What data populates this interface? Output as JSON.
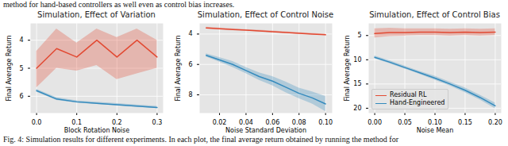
{
  "caption_top": "method for hand-based controllers as well even as control bias increases.",
  "caption_bottom": "Fig. 4: Simulation results for different experiments. In each plot, the final average return obtained by running the method for",
  "chart_data": [
    {
      "type": "line",
      "title": "Simulation, Effect of Variation",
      "x_label": "Block Rotation Noise",
      "y_label": "Final Average Return",
      "x": [
        0,
        0.05,
        0.1,
        0.15,
        0.2,
        0.25,
        0.3
      ],
      "xlim": [
        -0.015,
        0.315
      ],
      "xticks": [
        {
          "value": 0,
          "label": "0.0"
        },
        {
          "value": 0.1,
          "label": "0.1"
        },
        {
          "value": 0.2,
          "label": "0.2"
        },
        {
          "value": 0.3,
          "label": "0.3"
        }
      ],
      "ylim": [
        6.6,
        3.4
      ],
      "yticks": [
        4,
        5,
        6
      ],
      "grid": true,
      "series": [
        {
          "name": "Residual RL",
          "color": "#e24a33",
          "values": [
            5.0,
            4.3,
            4.6,
            4.0,
            4.6,
            4.0,
            4.6
          ],
          "lower": [
            5.7,
            5.0,
            5.1,
            4.9,
            5.4,
            5.2,
            5.0
          ],
          "upper": [
            4.4,
            3.6,
            4.1,
            3.6,
            3.9,
            3.6,
            4.0
          ]
        },
        {
          "name": "Hand-Engineered",
          "color": "#348abd",
          "values": [
            5.8,
            6.1,
            6.2,
            6.25,
            6.3,
            6.35,
            6.4
          ],
          "lower": [
            5.85,
            6.15,
            6.24,
            6.29,
            6.34,
            6.39,
            6.44
          ],
          "upper": [
            5.75,
            6.05,
            6.16,
            6.21,
            6.26,
            6.31,
            6.36
          ]
        }
      ]
    },
    {
      "type": "line",
      "title": "Simulation, Effect of Control Noise",
      "x_label": "Noise Standard Deviation",
      "y_label": "Final Average Return",
      "x": [
        0.01,
        0.02,
        0.03,
        0.04,
        0.05,
        0.06,
        0.07,
        0.08,
        0.09,
        0.1
      ],
      "xlim": [
        0.005,
        0.105
      ],
      "xticks": [
        0.02,
        0.04,
        0.06,
        0.08,
        {
          "value": 0.1,
          "label": "0.10"
        }
      ],
      "ylim": [
        9.2,
        3.3
      ],
      "yticks": [
        4,
        6,
        8
      ],
      "grid": true,
      "series": [
        {
          "name": "Residual RL",
          "color": "#e24a33",
          "values": [
            3.6,
            3.65,
            3.7,
            3.75,
            3.8,
            3.85,
            3.9,
            3.95,
            4.0,
            4.05
          ],
          "lower": [
            3.65,
            3.7,
            3.75,
            3.8,
            3.85,
            3.9,
            3.95,
            4.0,
            4.05,
            4.1
          ],
          "upper": [
            3.55,
            3.6,
            3.65,
            3.7,
            3.75,
            3.8,
            3.85,
            3.9,
            3.95,
            4.0
          ]
        },
        {
          "name": "Hand-Engineered",
          "color": "#348abd",
          "values": [
            5.4,
            5.7,
            6.0,
            6.4,
            6.8,
            7.1,
            7.5,
            7.9,
            8.2,
            8.6
          ],
          "lower": [
            5.5,
            5.85,
            6.2,
            6.6,
            7.05,
            7.4,
            7.85,
            8.25,
            8.6,
            9.1
          ],
          "upper": [
            5.3,
            5.55,
            5.8,
            6.2,
            6.55,
            6.8,
            7.15,
            7.55,
            7.8,
            8.1
          ]
        }
      ]
    },
    {
      "type": "line",
      "title": "Simulation, Effect of Control Bias",
      "x_label": "Noise Mean",
      "y_label": "Final Average Return",
      "x": [
        0,
        0.025,
        0.05,
        0.075,
        0.1,
        0.125,
        0.15,
        0.175,
        0.2
      ],
      "xlim": [
        -0.01,
        0.21
      ],
      "xticks": [
        {
          "value": 0,
          "label": "0.00"
        },
        0.05,
        {
          "value": 0.1,
          "label": "0.10"
        },
        0.15,
        {
          "value": 0.2,
          "label": "0.20"
        }
      ],
      "ylim": [
        21,
        2.5
      ],
      "yticks": [
        5,
        10,
        15,
        20
      ],
      "grid": true,
      "legend": "lower left",
      "series": [
        {
          "name": "Residual RL",
          "color": "#e24a33",
          "values": [
            4.6,
            4.4,
            4.4,
            4.3,
            4.3,
            4.4,
            4.3,
            4.4,
            4.3
          ],
          "lower": [
            5.5,
            5.2,
            5.1,
            5.0,
            5.0,
            5.1,
            5.0,
            5.1,
            5.0
          ],
          "upper": [
            3.6,
            3.5,
            3.6,
            3.6,
            3.6,
            3.7,
            3.6,
            3.7,
            3.6
          ]
        },
        {
          "name": "Hand-Engineered",
          "color": "#348abd",
          "values": [
            9.5,
            10.5,
            11.6,
            12.7,
            13.8,
            15.0,
            16.3,
            17.8,
            19.5
          ],
          "lower": [
            9.8,
            10.8,
            11.9,
            13.0,
            14.2,
            15.4,
            16.8,
            18.3,
            20.1
          ],
          "upper": [
            9.2,
            10.2,
            11.3,
            12.4,
            13.4,
            14.6,
            15.8,
            17.3,
            18.9
          ]
        }
      ]
    }
  ]
}
